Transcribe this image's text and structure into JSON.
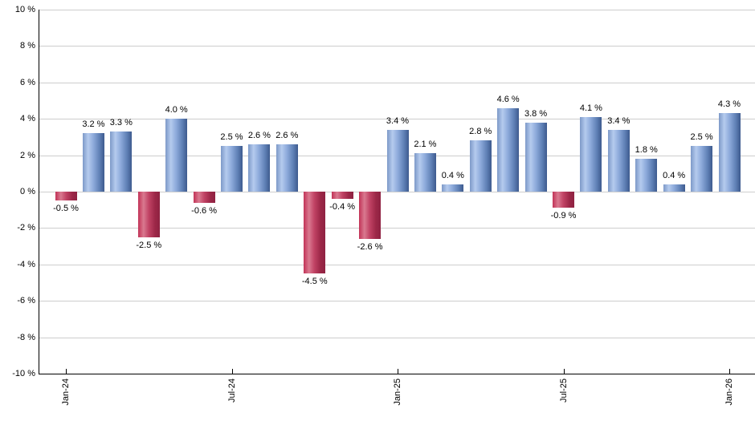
{
  "chart_data": {
    "type": "bar",
    "title": "",
    "xlabel": "",
    "ylabel": "",
    "ylim": [
      -10,
      10
    ],
    "y_step": 2,
    "grid": true,
    "legend": false,
    "values": [
      -0.5,
      3.2,
      3.3,
      -2.5,
      4.0,
      -0.6,
      2.5,
      2.6,
      2.6,
      -4.5,
      -0.4,
      -2.6,
      3.4,
      2.1,
      0.4,
      2.8,
      4.6,
      3.8,
      -0.9,
      4.1,
      3.4,
      1.8,
      0.4,
      2.5,
      4.3
    ],
    "bar_labels": [
      "-0.5 %",
      "3.2 %",
      "3.3 %",
      "-2.5 %",
      "4.0 %",
      "-0.6 %",
      "2.5 %",
      "2.6 %",
      "2.6 %",
      "-4.5 %",
      "-0.4 %",
      "-2.6 %",
      "3.4 %",
      "2.1 %",
      "0.4 %",
      "2.8 %",
      "4.6 %",
      "3.8 %",
      "-0.9 %",
      "4.1 %",
      "3.4 %",
      "1.8 %",
      "0.4 %",
      "2.5 %",
      "4.3 %"
    ],
    "x_ticks": [
      {
        "index": 0,
        "label": "Jan-24"
      },
      {
        "index": 6,
        "label": "Jul-24"
      },
      {
        "index": 12,
        "label": "Jan-25"
      },
      {
        "index": 18,
        "label": "Jul-25"
      },
      {
        "index": 24,
        "label": "Jan-26"
      }
    ],
    "y_ticks": [
      {
        "value": 10,
        "label": "10 %"
      },
      {
        "value": 8,
        "label": "8 %"
      },
      {
        "value": 6,
        "label": "6 %"
      },
      {
        "value": 4,
        "label": "4 %"
      },
      {
        "value": 2,
        "label": "2 %"
      },
      {
        "value": 0,
        "label": "0 %"
      },
      {
        "value": -2,
        "label": "-2 %"
      },
      {
        "value": -4,
        "label": "-4 %"
      },
      {
        "value": -6,
        "label": "-6 %"
      },
      {
        "value": -8,
        "label": "-8 %"
      },
      {
        "value": -10,
        "label": "-10 %"
      }
    ],
    "colors": {
      "positive_bar_gradient": [
        "#7d99c8",
        "#b5cbee",
        "#8ca9da",
        "#5f80b5",
        "#3d5a8e"
      ],
      "negative_bar_gradient": [
        "#c23357",
        "#d9798f",
        "#c04264",
        "#9c2747",
        "#8f2242"
      ],
      "gridline": "#cdcdcd",
      "axis": "#000000",
      "text": "#000000"
    }
  }
}
